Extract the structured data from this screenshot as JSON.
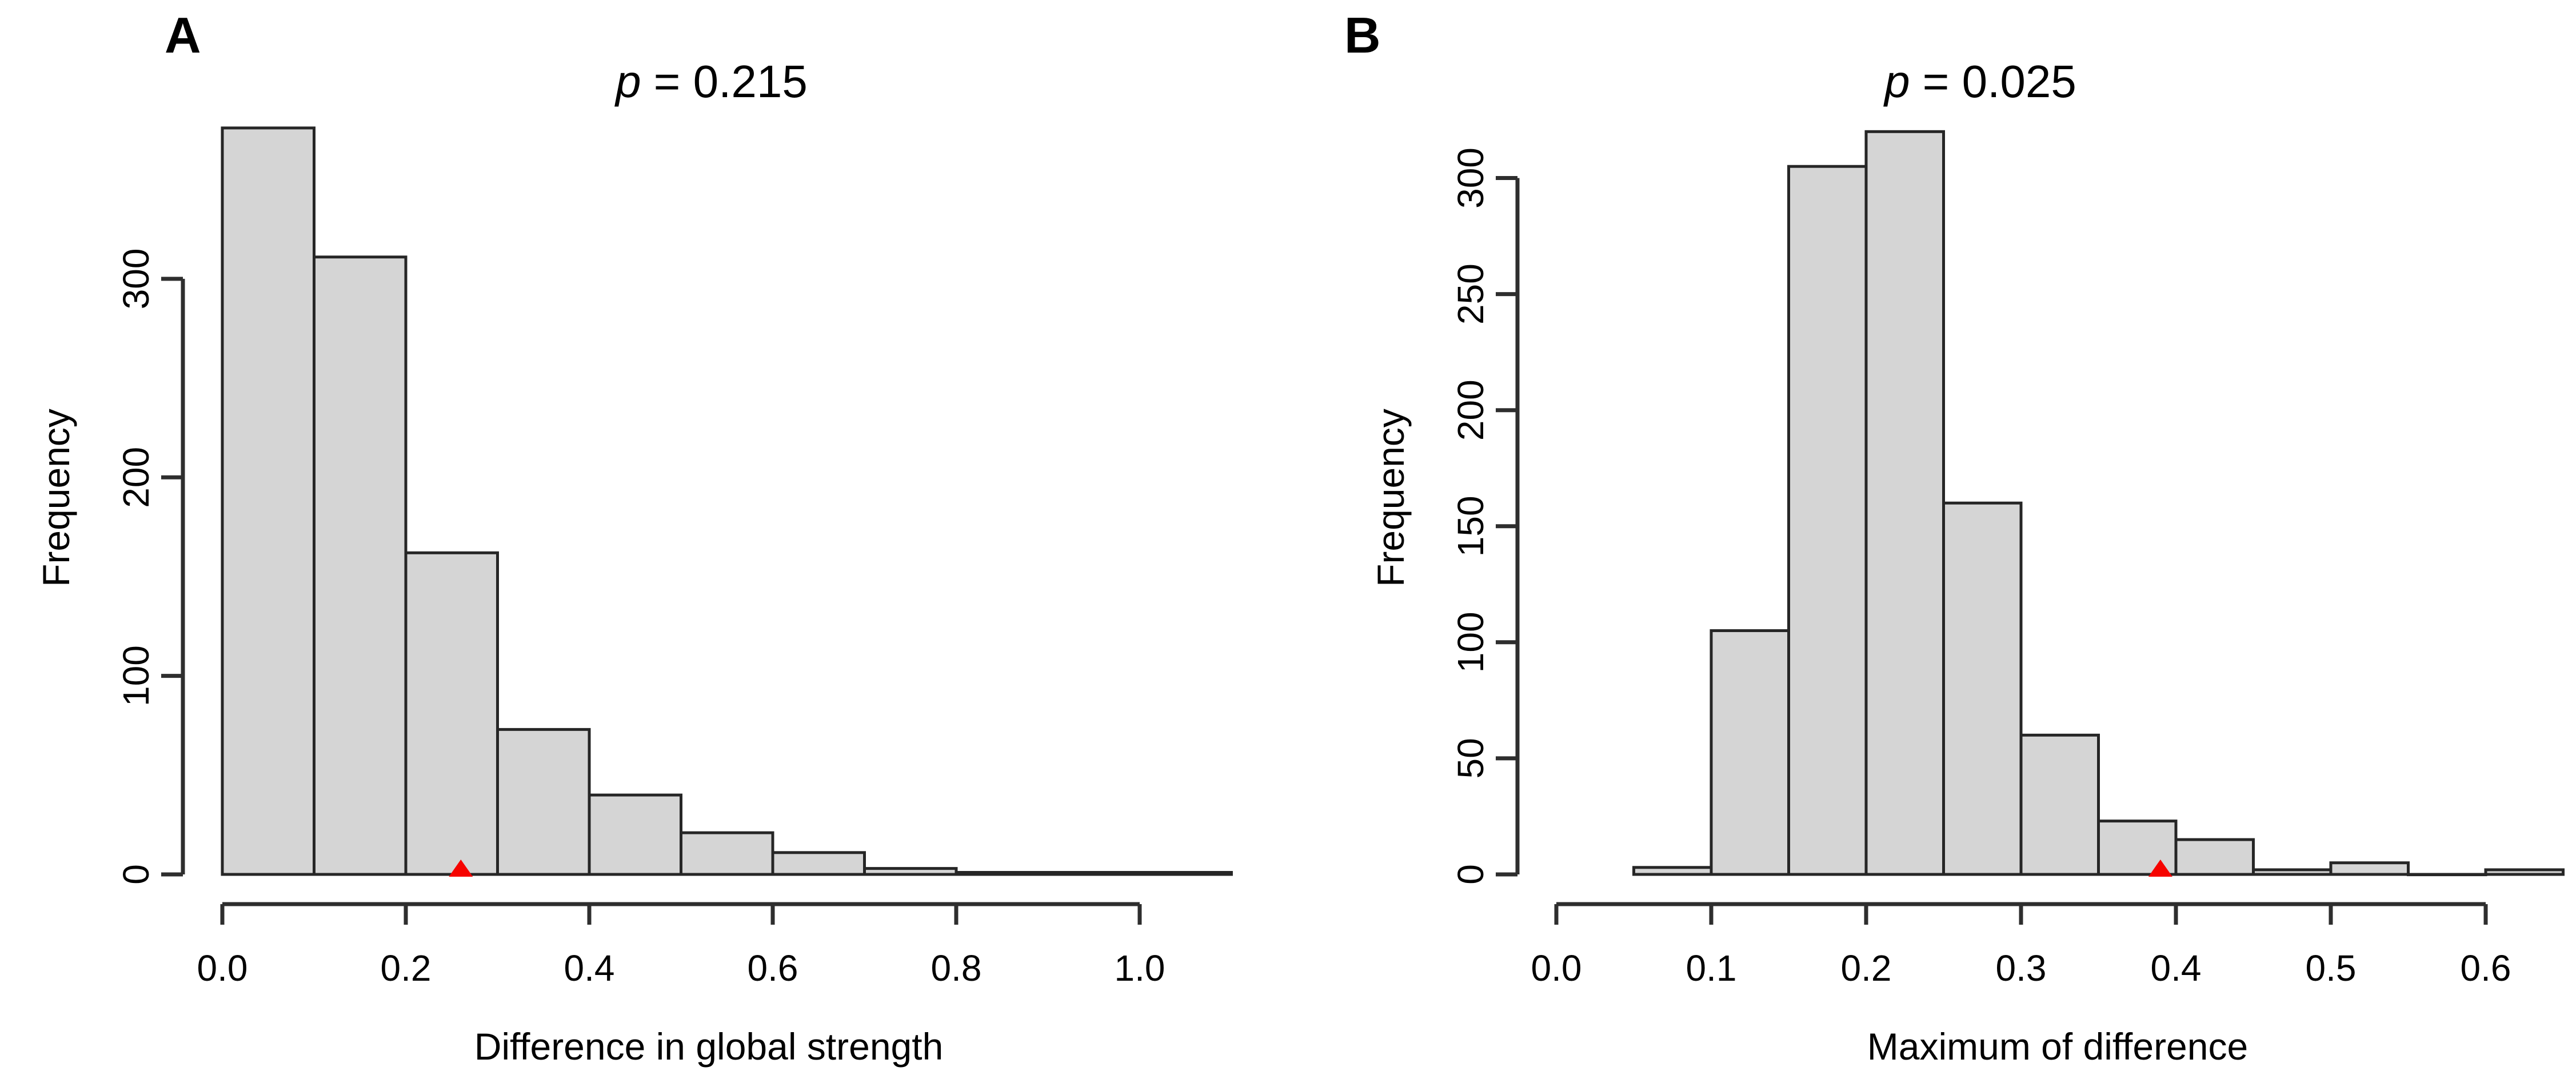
{
  "figure": {
    "background_color": "#ffffff",
    "bar_fill_color": "#d5d5d5",
    "bar_border_color": "#262626",
    "axis_color": "#2e2e2e",
    "text_color": "#000000",
    "marker_color": "#f60400",
    "marker_shape": "triangle-up"
  },
  "chart_data": [
    {
      "type": "bar",
      "subtype": "histogram",
      "panel_label": "A",
      "title": "p = 0.215",
      "title_p_symbol": "p",
      "title_value_text": "= 0.215",
      "xlabel": "Difference in global strength",
      "ylabel": "Frequency",
      "bin_start": 0.0,
      "bin_width": 0.1,
      "counts": [
        376,
        311,
        162,
        73,
        40,
        21,
        11,
        3,
        1,
        1,
        1
      ],
      "x_ticks": [
        0.0,
        0.2,
        0.4,
        0.6,
        0.8,
        1.0
      ],
      "x_tick_labels": [
        "0.0",
        "0.2",
        "0.4",
        "0.6",
        "0.8",
        "1.0"
      ],
      "y_ticks": [
        0,
        100,
        200,
        300
      ],
      "y_tick_labels": [
        "0",
        "100",
        "200",
        "300"
      ],
      "xlim": [
        0.0,
        1.1
      ],
      "ylim": [
        0,
        380
      ],
      "grid": false,
      "legend": false,
      "marker": {
        "x": 0.26,
        "y": 0
      }
    },
    {
      "type": "bar",
      "subtype": "histogram",
      "panel_label": "B",
      "title": "p = 0.025",
      "title_p_symbol": "p",
      "title_value_text": "= 0.025",
      "xlabel": "Maximum of difference",
      "ylabel": "Frequency",
      "bin_start": 0.05,
      "bin_width": 0.05,
      "counts": [
        3,
        105,
        305,
        320,
        160,
        60,
        23,
        15,
        2,
        5,
        0,
        2
      ],
      "x_ticks": [
        0.0,
        0.1,
        0.2,
        0.3,
        0.4,
        0.5,
        0.6
      ],
      "x_tick_labels": [
        "0.0",
        "0.1",
        "0.2",
        "0.3",
        "0.4",
        "0.5",
        "0.6"
      ],
      "y_ticks": [
        0,
        50,
        100,
        150,
        200,
        250,
        300
      ],
      "y_tick_labels": [
        "0",
        "50",
        "100",
        "150",
        "200",
        "250",
        "300"
      ],
      "xlim": [
        0.0,
        0.65
      ],
      "ylim": [
        0,
        325
      ],
      "grid": false,
      "legend": false,
      "marker": {
        "x": 0.39,
        "y": 0
      }
    }
  ]
}
